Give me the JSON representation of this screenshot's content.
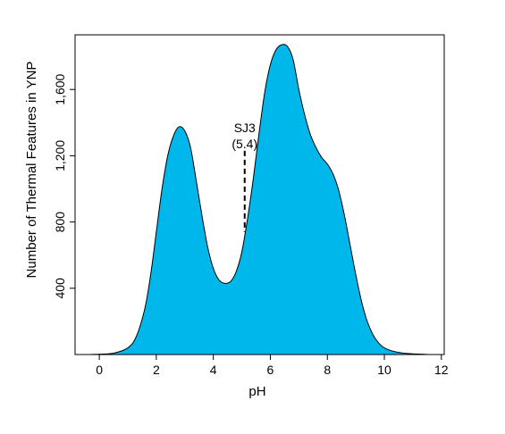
{
  "chart_data": {
    "type": "area",
    "title": "",
    "xlabel": "pH",
    "ylabel": "Number of Thermal Features in YNP",
    "xlim": [
      -0.85,
      12.1
    ],
    "ylim": [
      0,
      1930
    ],
    "x_ticks": [
      0,
      2,
      4,
      6,
      8,
      10,
      12
    ],
    "x_tick_labels": [
      "0",
      "2",
      "4",
      "6",
      "8",
      "10",
      "12"
    ],
    "y_ticks": [
      400,
      800,
      1200,
      1600
    ],
    "y_tick_labels": [
      "400",
      "800",
      "1,200",
      "1,600"
    ],
    "grid": false,
    "legend": "none",
    "fill_color": "#00b7eb",
    "line_color": "#000000",
    "series": [
      {
        "x": [
          -0.4,
          0,
          0.5,
          1.0,
          1.3,
          1.6,
          1.8,
          2.0,
          2.2,
          2.4,
          2.6,
          2.8,
          3.0,
          3.2,
          3.4,
          3.6,
          3.8,
          4.0,
          4.2,
          4.4,
          4.6,
          4.8,
          5.0,
          5.2,
          5.4,
          5.6,
          5.8,
          6.0,
          6.2,
          6.4,
          6.6,
          6.8,
          7.0,
          7.2,
          7.4,
          7.6,
          7.8,
          8.0,
          8.2,
          8.4,
          8.6,
          8.8,
          9.0,
          9.2,
          9.4,
          9.6,
          9.8,
          10.0,
          10.3,
          10.6,
          11.0,
          11.6
        ],
        "y": [
          0,
          2,
          8,
          40,
          110,
          280,
          480,
          740,
          1000,
          1200,
          1320,
          1375,
          1350,
          1250,
          1050,
          840,
          650,
          520,
          450,
          430,
          440,
          500,
          620,
          820,
          1060,
          1330,
          1580,
          1750,
          1840,
          1870,
          1860,
          1780,
          1600,
          1450,
          1330,
          1250,
          1190,
          1150,
          1090,
          990,
          840,
          660,
          480,
          320,
          200,
          120,
          70,
          40,
          20,
          10,
          4,
          0
        ]
      }
    ],
    "annotations": [
      {
        "text_line1": "SJ3",
        "text_line2": "(5.4)",
        "x": 5.1,
        "y_from": 740,
        "y_to": 1230
      }
    ]
  }
}
